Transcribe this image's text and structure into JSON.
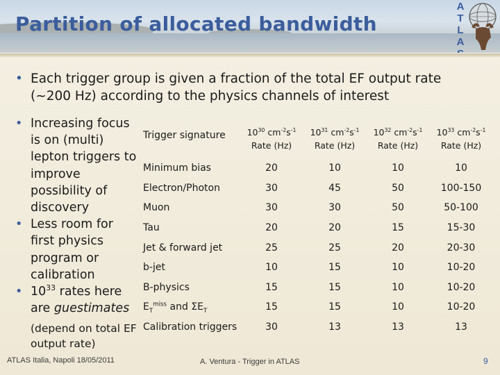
{
  "slide": {
    "title": "Partition of allocated bandwidth",
    "logo_letters": [
      "A",
      "T",
      "L",
      "A",
      "S"
    ]
  },
  "top_bullet": {
    "line1": "Each trigger group is given a fraction of the total EF output rate",
    "line2": "(~200 Hz) according to the physics channels of interest"
  },
  "left_bullets": {
    "item1": "Increasing focus is on (multi) lepton triggers to improve possibility of discovery",
    "item2": "Less room for first physics program or calibration",
    "item3_base": "10",
    "item3_exp": "33",
    "item3_mid": " rates here are ",
    "item3_em": "guestimates",
    "item3_sub": "(depend on total EF output rate)"
  },
  "table": {
    "header_signature": "Trigger signature",
    "columns": [
      {
        "base": "10",
        "exp": "30",
        "unit_a": " cm",
        "unit_a_exp": "-2",
        "unit_b": "s",
        "unit_b_exp": "-1",
        "rate": "Rate (Hz)"
      },
      {
        "base": "10",
        "exp": "31",
        "unit_a": " cm",
        "unit_a_exp": "-2",
        "unit_b": "s",
        "unit_b_exp": "-1",
        "rate": "Rate (Hz)"
      },
      {
        "base": "10",
        "exp": "32",
        "unit_a": " cm",
        "unit_a_exp": "-2",
        "unit_b": "s",
        "unit_b_exp": "-1",
        "rate": "Rate (Hz)"
      },
      {
        "base": "10",
        "exp": "33",
        "unit_a": " cm",
        "unit_a_exp": "-2",
        "unit_b": "s",
        "unit_b_exp": "-1",
        "rate": "Rate (Hz)"
      }
    ],
    "rows": [
      {
        "name": "Minimum bias",
        "values": [
          "20",
          "10",
          "10",
          "10"
        ]
      },
      {
        "name": "Electron/Photon",
        "values": [
          "30",
          "45",
          "50",
          "100-150"
        ]
      },
      {
        "name": "Muon",
        "values": [
          "30",
          "30",
          "50",
          "50-100"
        ]
      },
      {
        "name": "Tau",
        "values": [
          "20",
          "20",
          "15",
          "15-30"
        ]
      },
      {
        "name": "Jet & forward jet",
        "values": [
          "25",
          "25",
          "20",
          "20-30"
        ]
      },
      {
        "name": "b-jet",
        "values": [
          "10",
          "15",
          "10",
          "10-20"
        ]
      },
      {
        "name": "B-physics",
        "values": [
          "15",
          "15",
          "10",
          "10-20"
        ]
      },
      {
        "name_parts": {
          "e": "E",
          "t": "T",
          "miss": "miss",
          "and": " and ",
          "sum": "ΣE",
          "t2": "T"
        },
        "values": [
          "15",
          "15",
          "10",
          "10-20"
        ]
      },
      {
        "name": "Calibration triggers",
        "values": [
          "30",
          "13",
          "13",
          "13"
        ]
      }
    ]
  },
  "footer": {
    "left": "ATLAS Italia, Napoli 18/05/2011",
    "center": "A. Ventura - Trigger in ATLAS",
    "page": "9"
  },
  "colors": {
    "title": "#3b5d9c",
    "background": "#f4f0e3"
  }
}
